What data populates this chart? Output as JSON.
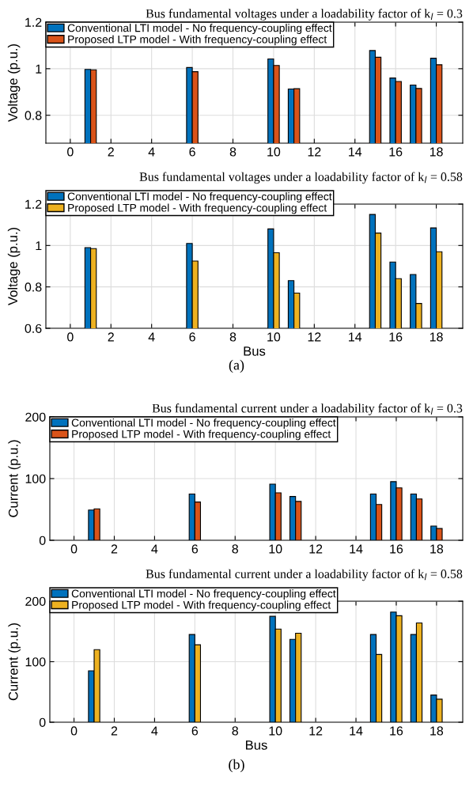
{
  "chart_data": [
    {
      "type": "bar",
      "title": "Bus fundamental voltages under a loadability factor of k$_{l}$ = 0.3",
      "ylabel": "Voltage (p.u.)",
      "x": [
        1,
        6,
        10,
        11,
        15,
        16,
        17,
        18
      ],
      "xlim": [
        -1.2,
        19.3
      ],
      "xticks": [
        0,
        2,
        4,
        6,
        8,
        10,
        12,
        14,
        16,
        18
      ],
      "ylim": [
        0.68,
        1.2
      ],
      "yticks": [
        0.8,
        1,
        1.2
      ],
      "grid": true,
      "legend": "top left",
      "series": [
        {
          "name": "Conventional LTI model - No frequency-coupling effect",
          "color": "#0072bd",
          "values": [
            0.997,
            1.005,
            1.042,
            0.913,
            1.078,
            0.96,
            0.93,
            1.045
          ]
        },
        {
          "name": "Proposed LTP model - With frequency-coupling effect",
          "color": "#d95319",
          "values": [
            0.995,
            0.987,
            1.014,
            0.914,
            1.049,
            0.945,
            0.915,
            1.017
          ]
        }
      ]
    },
    {
      "type": "bar",
      "title": "Bus fundamental voltages under a loadability factor of k$_{l}$ = 0.58",
      "xlabel": "Bus",
      "ylabel": "Voltage (p.u.)",
      "annotations": [
        "(a)"
      ],
      "x": [
        1,
        6,
        10,
        11,
        15,
        16,
        17,
        18
      ],
      "xlim": [
        -1.2,
        19.3
      ],
      "xticks": [
        0,
        2,
        4,
        6,
        8,
        10,
        12,
        14,
        16,
        18
      ],
      "ylim": [
        0.6,
        1.2
      ],
      "yticks": [
        0.6,
        0.8,
        1,
        1.2
      ],
      "grid": true,
      "legend": "top left",
      "series": [
        {
          "name": "Conventional LTI model - No frequency-coupling effect",
          "color": "#0072bd",
          "values": [
            0.99,
            1.01,
            1.08,
            0.83,
            1.15,
            0.92,
            0.86,
            1.085
          ]
        },
        {
          "name": "Proposed LTP model - With frequency-coupling effect",
          "color": "#edb120",
          "values": [
            0.985,
            0.925,
            0.965,
            0.77,
            1.06,
            0.84,
            0.72,
            0.97
          ]
        }
      ]
    },
    {
      "type": "bar",
      "title": "Bus fundamental current under a loadability factor of k$_{l}$ = 0.3",
      "ylabel": "Current (p.u.)",
      "x": [
        1,
        6,
        10,
        11,
        15,
        16,
        17,
        18
      ],
      "xlim": [
        -1.2,
        19.3
      ],
      "xticks": [
        0,
        2,
        4,
        6,
        8,
        10,
        12,
        14,
        16,
        18
      ],
      "ylim": [
        0,
        200
      ],
      "yticks": [
        0,
        100,
        200
      ],
      "grid": true,
      "legend": "top left",
      "series": [
        {
          "name": "Conventional LTI model - No frequency-coupling effect",
          "color": "#0072bd",
          "values": [
            49,
            75,
            91,
            71,
            75,
            95,
            75,
            23
          ]
        },
        {
          "name": "Proposed LTP model - With frequency-coupling effect",
          "color": "#d95319",
          "values": [
            51,
            62,
            77,
            63,
            58,
            85,
            67,
            19
          ]
        }
      ]
    },
    {
      "type": "bar",
      "title": "Bus fundamental current under a loadability factor of k$_{l}$ = 0.58",
      "xlabel": "Bus",
      "ylabel": "Current (p.u.)",
      "annotations": [
        "(b)"
      ],
      "x": [
        1,
        6,
        10,
        11,
        15,
        16,
        17,
        18
      ],
      "xlim": [
        -1.2,
        19.3
      ],
      "xticks": [
        0,
        2,
        4,
        6,
        8,
        10,
        12,
        14,
        16,
        18
      ],
      "ylim": [
        0,
        200
      ],
      "yticks": [
        0,
        100,
        200
      ],
      "grid": true,
      "legend": "top left",
      "series": [
        {
          "name": "Conventional LTI model - No frequency-coupling effect",
          "color": "#0072bd",
          "values": [
            85,
            145,
            175,
            137,
            145,
            182,
            145,
            45
          ]
        },
        {
          "name": "Proposed LTP model - With frequency-coupling effect",
          "color": "#edb120",
          "values": [
            120,
            128,
            154,
            147,
            112,
            176,
            164,
            38
          ]
        }
      ]
    }
  ]
}
